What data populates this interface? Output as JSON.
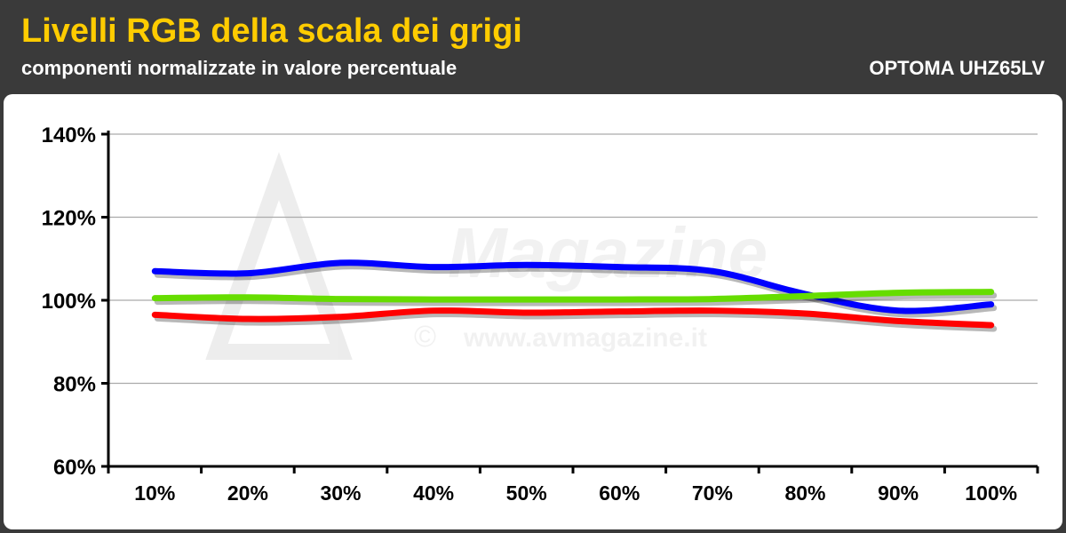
{
  "header": {
    "title": "Livelli RGB della scala dei grigi",
    "subtitle": "componenti normalizzate in valore percentuale",
    "model": "OPTOMA UHZ65LV"
  },
  "watermark": {
    "url_text": "www.avmagazine.it",
    "brand_text": "Magazine"
  },
  "colors": {
    "header_bg": "#3a3a3a",
    "title": "#ffcc00",
    "red": "#ff0000",
    "green": "#66dd00",
    "blue": "#0000ff",
    "grid": "#aaaaaa"
  },
  "chart_data": {
    "type": "line",
    "categories": [
      "10%",
      "20%",
      "30%",
      "40%",
      "50%",
      "60%",
      "70%",
      "80%",
      "90%",
      "100%"
    ],
    "yticks": [
      "60%",
      "80%",
      "100%",
      "120%",
      "140%"
    ],
    "ylim": [
      60,
      140
    ],
    "grid": true,
    "series": [
      {
        "color": "#0000ff",
        "values": [
          107,
          106.5,
          109,
          108,
          108.5,
          108,
          107,
          101.5,
          97.5,
          99
        ]
      },
      {
        "color": "#66dd00",
        "values": [
          100.5,
          100.7,
          100.3,
          100.2,
          100.2,
          100.2,
          100.3,
          101,
          101.8,
          102
        ]
      },
      {
        "color": "#ff0000",
        "values": [
          96.5,
          95.5,
          96,
          97.5,
          97,
          97.3,
          97.5,
          96.8,
          95,
          94
        ]
      }
    ]
  }
}
